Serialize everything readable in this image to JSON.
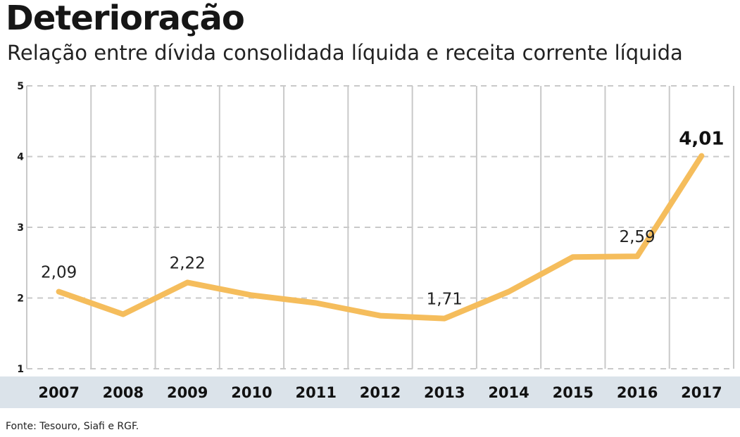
{
  "header": {
    "title": "Deterioração",
    "subtitle": "Relação entre dívida consolidada líquida e receita corrente líquida"
  },
  "footer": {
    "source": "Fonte: Tesouro, Siafi e RGF."
  },
  "colors": {
    "line": "#f5bd5c",
    "grid": "#c9c9c9",
    "axis_band": "#dbe3ea",
    "background": "#ffffff"
  },
  "chart_data": {
    "type": "line",
    "title": "Deterioração",
    "subtitle": "Relação entre dívida consolidada líquida e receita corrente líquida",
    "xlabel": "",
    "ylabel": "",
    "categories": [
      "2007",
      "2008",
      "2009",
      "2010",
      "2011",
      "2012",
      "2013",
      "2014",
      "2015",
      "2016",
      "2017"
    ],
    "series": [
      {
        "values": [
          2.09,
          1.77,
          2.22,
          2.04,
          1.93,
          1.75,
          1.71,
          2.09,
          2.58,
          2.59,
          4.01
        ]
      }
    ],
    "data_labels": [
      {
        "index": 0,
        "text": "2,09",
        "emphasis": false
      },
      {
        "index": 2,
        "text": "2,22",
        "emphasis": false
      },
      {
        "index": 6,
        "text": "1,71",
        "emphasis": false
      },
      {
        "index": 9,
        "text": "2,59",
        "emphasis": false
      },
      {
        "index": 10,
        "text": "4,01",
        "emphasis": true
      }
    ],
    "y_ticks": [
      "1",
      "2",
      "3",
      "4",
      "5"
    ],
    "ylim": [
      1,
      5
    ],
    "grid": true,
    "legend": "none"
  }
}
